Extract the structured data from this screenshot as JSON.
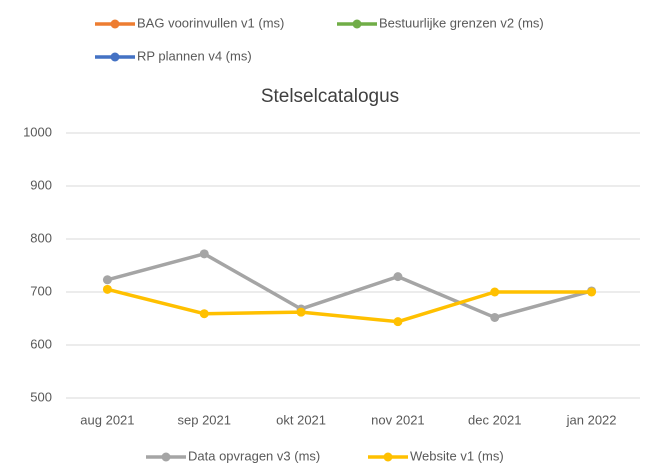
{
  "chart_data": {
    "type": "line",
    "title": "Stelselcatalogus",
    "categories": [
      "aug 2021",
      "sep 2021",
      "okt 2021",
      "nov 2021",
      "dec 2021",
      "jan 2022"
    ],
    "series": [
      {
        "name": "BAG voorinvullen v1 (ms)",
        "color": "#ed7d31",
        "values": [
          null,
          null,
          null,
          null,
          null,
          null
        ]
      },
      {
        "name": "Bestuurlijke grenzen v2 (ms)",
        "color": "#70ad47",
        "values": [
          null,
          null,
          null,
          null,
          null,
          null
        ]
      },
      {
        "name": "RP plannen v4 (ms)",
        "color": "#4472c4",
        "values": [
          null,
          null,
          null,
          null,
          null,
          null
        ]
      },
      {
        "name": "Data opvragen v3 (ms)",
        "color": "#a5a5a5",
        "values": [
          723,
          772,
          668,
          729,
          652,
          702
        ]
      },
      {
        "name": "Website v1 (ms)",
        "color": "#ffc000",
        "values": [
          705,
          659,
          662,
          644,
          700,
          700
        ]
      }
    ],
    "ylim": [
      500,
      1000
    ],
    "yticks": [
      500,
      600,
      700,
      800,
      900,
      1000
    ],
    "grid": true
  }
}
